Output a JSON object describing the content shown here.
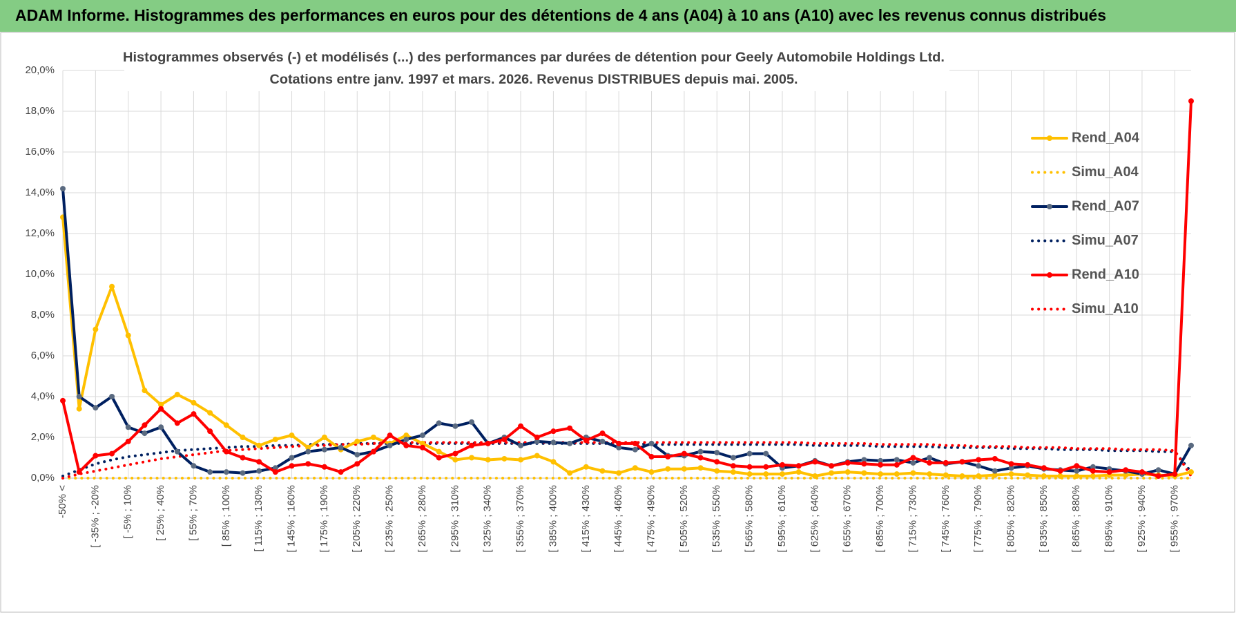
{
  "header": {
    "title": "ADAM Informe. Histogrammes des performances en euros pour des détentions de 4 ans (A04) à 10 ans (A10) avec les revenus connus distribués"
  },
  "chart_data": {
    "type": "line",
    "title": "Histogrammes observés (-) et modélisés (...) des performances par durées de détention pour Geely Automobile Holdings Ltd.",
    "subtitle": "Cotations entre janv. 1997 et mars. 2026. Revenus DISTRIBUES depuis mai. 2005.",
    "categories": [
      "-50% <",
      null,
      "[ -35% ; -20%",
      null,
      "[ -5% ; 10%",
      null,
      "[ 25% ; 40%",
      null,
      "[ 55% ; 70%",
      null,
      "[ 85% ; 100%",
      null,
      "[ 115% ; 130%",
      null,
      "[ 145% ; 160%",
      null,
      "[ 175% ; 190%",
      null,
      "[ 205% ; 220%",
      null,
      "[ 235% ; 250%",
      null,
      "[ 265% ; 280%",
      null,
      "[ 295% ; 310%",
      null,
      "[ 325% ; 340%",
      null,
      "[ 355% ; 370%",
      null,
      "[ 385% ; 400%",
      null,
      "[ 415% ; 430%",
      null,
      "[ 445% ; 460%",
      null,
      "[ 475% ; 490%",
      null,
      "[ 505% ; 520%",
      null,
      "[ 535% ; 550%",
      null,
      "[ 565% ; 580%",
      null,
      "[ 595% ; 610%",
      null,
      "[ 625% ; 640%",
      null,
      "[ 655% ; 670%",
      null,
      "[ 685% ; 700%",
      null,
      "[ 715% ; 730%",
      null,
      "[ 745% ; 760%",
      null,
      "[ 775% ; 790%",
      null,
      "[ 805% ; 820%",
      null,
      "[ 835% ; 850%",
      null,
      "[ 865% ; 880%",
      null,
      "[ 895% ; 910%",
      null,
      "[ 925% ; 940%",
      null,
      "[ 955% ; 970%",
      null
    ],
    "ylim": [
      0,
      20
    ],
    "yticks": [
      {
        "value": 0,
        "label": "0,0%"
      },
      {
        "value": 2,
        "label": "2,0%"
      },
      {
        "value": 4,
        "label": "4,0%"
      },
      {
        "value": 6,
        "label": "6,0%"
      },
      {
        "value": 8,
        "label": "8,0%"
      },
      {
        "value": 10,
        "label": "10,0%"
      },
      {
        "value": 12,
        "label": "12,0%"
      },
      {
        "value": 14,
        "label": "14,0%"
      },
      {
        "value": 16,
        "label": "16,0%"
      },
      {
        "value": 18,
        "label": "18,0%"
      },
      {
        "value": 20,
        "label": "20,0%"
      }
    ],
    "grid": true,
    "legend": "upper right",
    "series": [
      {
        "name": "Rend_A04",
        "color": "#ffc000",
        "style": "solid",
        "values": [
          12.8,
          3.4,
          7.3,
          9.4,
          7.0,
          4.3,
          3.6,
          4.1,
          3.7,
          3.2,
          2.6,
          2.0,
          1.6,
          1.9,
          2.1,
          1.5,
          2.0,
          1.4,
          1.8,
          2.0,
          1.7,
          2.1,
          1.7,
          1.3,
          0.9,
          1.0,
          0.9,
          0.95,
          0.9,
          1.1,
          0.8,
          0.25,
          0.55,
          0.35,
          0.25,
          0.5,
          0.3,
          0.45,
          0.45,
          0.5,
          0.35,
          0.3,
          0.2,
          0.2,
          0.2,
          0.3,
          0.1,
          0.25,
          0.3,
          0.25,
          0.2,
          0.2,
          0.25,
          0.2,
          0.15,
          0.1,
          0.1,
          0.15,
          0.2,
          0.15,
          0.1,
          0.1,
          0.1,
          0.1,
          0.15,
          0.15,
          0.2,
          0.15,
          0.1,
          0.3
        ]
      },
      {
        "name": "Simu_A04",
        "color": "#ffc000",
        "style": "dotted",
        "values": [
          0,
          0,
          0,
          0,
          0,
          0,
          0,
          0,
          0,
          0,
          0,
          0,
          0,
          0,
          0,
          0,
          0,
          0,
          0,
          0,
          0,
          0,
          0,
          0,
          0,
          0,
          0,
          0,
          0,
          0,
          0,
          0,
          0,
          0,
          0,
          0,
          0,
          0,
          0,
          0,
          0,
          0,
          0,
          0,
          0,
          0,
          0,
          0,
          0,
          0,
          0,
          0,
          0,
          0,
          0,
          0,
          0,
          0,
          0,
          0,
          0,
          0,
          0,
          0,
          0,
          0,
          0,
          0,
          0,
          0
        ]
      },
      {
        "name": "Rend_A07",
        "color": "#002060",
        "style": "solid",
        "marker": "#5a6a80",
        "values": [
          14.2,
          4.0,
          3.45,
          4.0,
          2.5,
          2.2,
          2.5,
          1.3,
          0.6,
          0.3,
          0.3,
          0.25,
          0.35,
          0.5,
          1.0,
          1.3,
          1.4,
          1.5,
          1.15,
          1.3,
          1.6,
          1.9,
          2.1,
          2.7,
          2.55,
          2.75,
          1.7,
          2.0,
          1.6,
          1.8,
          1.75,
          1.7,
          2.0,
          1.8,
          1.5,
          1.4,
          1.7,
          1.1,
          1.1,
          1.3,
          1.25,
          1.0,
          1.2,
          1.2,
          0.5,
          0.6,
          0.85,
          0.6,
          0.8,
          0.9,
          0.85,
          0.9,
          0.75,
          1.0,
          0.7,
          0.8,
          0.6,
          0.35,
          0.5,
          0.6,
          0.45,
          0.4,
          0.35,
          0.55,
          0.45,
          0.35,
          0.2,
          0.4,
          0.2,
          1.6
        ]
      },
      {
        "name": "Simu_A07",
        "color": "#002060",
        "style": "dotted",
        "values": [
          0.1,
          0.4,
          0.7,
          0.9,
          1.05,
          1.15,
          1.25,
          1.35,
          1.4,
          1.45,
          1.5,
          1.55,
          1.55,
          1.6,
          1.6,
          1.65,
          1.65,
          1.65,
          1.7,
          1.7,
          1.7,
          1.7,
          1.7,
          1.7,
          1.7,
          1.7,
          1.7,
          1.7,
          1.7,
          1.7,
          1.7,
          1.7,
          1.7,
          1.7,
          1.7,
          1.7,
          1.65,
          1.65,
          1.65,
          1.65,
          1.65,
          1.65,
          1.65,
          1.65,
          1.65,
          1.65,
          1.6,
          1.6,
          1.6,
          1.6,
          1.55,
          1.55,
          1.55,
          1.55,
          1.5,
          1.5,
          1.5,
          1.5,
          1.45,
          1.45,
          1.45,
          1.4,
          1.4,
          1.4,
          1.35,
          1.35,
          1.35,
          1.3,
          1.3,
          0.3
        ]
      },
      {
        "name": "Rend_A10",
        "color": "#ff0000",
        "style": "solid",
        "values": [
          3.8,
          0.3,
          1.1,
          1.2,
          1.8,
          2.6,
          3.4,
          2.7,
          3.15,
          2.3,
          1.3,
          1.0,
          0.8,
          0.3,
          0.6,
          0.7,
          0.55,
          0.3,
          0.7,
          1.3,
          2.1,
          1.6,
          1.5,
          1.0,
          1.2,
          1.6,
          1.7,
          1.9,
          2.55,
          2.0,
          2.3,
          2.45,
          1.85,
          2.2,
          1.7,
          1.7,
          1.05,
          1.05,
          1.2,
          1.0,
          0.8,
          0.6,
          0.55,
          0.55,
          0.65,
          0.6,
          0.8,
          0.6,
          0.75,
          0.7,
          0.65,
          0.65,
          1.0,
          0.75,
          0.75,
          0.8,
          0.9,
          0.95,
          0.7,
          0.65,
          0.5,
          0.35,
          0.6,
          0.35,
          0.3,
          0.4,
          0.3,
          0.1,
          0.2,
          18.5
        ]
      },
      {
        "name": "Simu_A10",
        "color": "#ff0000",
        "style": "dotted",
        "values": [
          0,
          0.2,
          0.35,
          0.5,
          0.65,
          0.8,
          0.95,
          1.05,
          1.15,
          1.25,
          1.35,
          1.4,
          1.45,
          1.5,
          1.55,
          1.6,
          1.6,
          1.65,
          1.65,
          1.7,
          1.75,
          1.75,
          1.75,
          1.75,
          1.75,
          1.75,
          1.75,
          1.75,
          1.75,
          1.75,
          1.75,
          1.75,
          1.75,
          1.75,
          1.75,
          1.75,
          1.75,
          1.75,
          1.75,
          1.75,
          1.75,
          1.75,
          1.75,
          1.75,
          1.75,
          1.75,
          1.7,
          1.7,
          1.7,
          1.7,
          1.65,
          1.65,
          1.65,
          1.65,
          1.6,
          1.6,
          1.55,
          1.55,
          1.55,
          1.5,
          1.5,
          1.5,
          1.45,
          1.45,
          1.45,
          1.4,
          1.4,
          1.4,
          1.35,
          0.1
        ]
      }
    ]
  }
}
